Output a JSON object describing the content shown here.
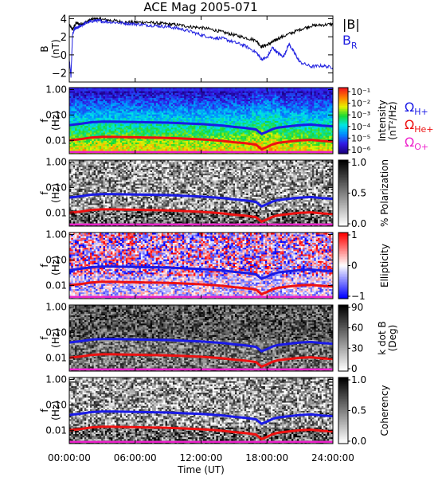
{
  "title": "ACE Mag 2005-071",
  "colors": {
    "b_total": "#000000",
    "b_r": "#2020e0",
    "h_plus": "#1a1ae6",
    "he_plus": "#ee1111",
    "o_plus": "#ee22cc"
  },
  "legend_top": {
    "b_total": "|B|",
    "b_r": "B",
    "b_r_sub": "R"
  },
  "legend_gyro": [
    {
      "sym": "Ω",
      "sub": "H+",
      "color": "#1a1ae6"
    },
    {
      "sym": "Ω",
      "sub": "He+",
      "color": "#ee1111"
    },
    {
      "sym": "Ω",
      "sub": "O+",
      "color": "#ee22cc"
    }
  ],
  "x_axis": {
    "label": "Time (UT)",
    "ticks": [
      "00:00:00",
      "06:00:00",
      "12:00:00",
      "18:00:00",
      "24:00:00"
    ],
    "range_hours": [
      0,
      24
    ]
  },
  "chart_data": [
    {
      "type": "line",
      "panel": "B",
      "ylabel": "B",
      "yunit": "(nT)",
      "ylim": [
        -3,
        4.3
      ],
      "yticks": [
        "4",
        "2",
        "0",
        "−2"
      ],
      "yticks_values": [
        4,
        2,
        0,
        -2
      ],
      "series": [
        {
          "name": "|B|",
          "x": [
            0,
            0.3,
            0.6,
            1,
            1.5,
            2,
            2.5,
            3,
            4,
            5,
            6,
            7,
            8,
            9,
            10,
            11,
            12,
            13,
            14,
            15,
            16,
            17,
            17.5,
            18,
            18.5,
            19,
            20,
            21,
            22,
            23,
            24
          ],
          "values": [
            3.3,
            2.8,
            3.5,
            3.4,
            3.6,
            3.9,
            4.0,
            3.9,
            3.8,
            3.6,
            3.6,
            3.6,
            3.5,
            3.4,
            3.3,
            3.1,
            3.0,
            2.8,
            2.5,
            2.2,
            1.9,
            1.6,
            0.9,
            1.1,
            1.4,
            1.8,
            2.3,
            2.8,
            3.2,
            3.3,
            3.4
          ]
        },
        {
          "name": "B_R",
          "x": [
            0,
            0.15,
            0.3,
            0.5,
            0.8,
            1,
            1.5,
            2,
            2.5,
            3,
            4,
            5,
            6,
            7,
            8,
            9,
            10,
            11,
            12,
            13,
            14,
            15,
            16,
            17,
            17.5,
            18,
            18.5,
            19,
            19.5,
            20,
            20.5,
            21,
            22,
            23,
            24
          ],
          "values": [
            -0.5,
            -2.4,
            2.3,
            2.9,
            3.0,
            3.2,
            3.5,
            3.7,
            3.8,
            3.7,
            3.6,
            3.5,
            3.4,
            3.3,
            3.2,
            3.1,
            2.9,
            2.6,
            2.2,
            1.9,
            1.8,
            1.4,
            1.0,
            0.3,
            -0.5,
            -0.3,
            0.8,
            0.2,
            -0.2,
            1.2,
            0.2,
            -0.8,
            -1.3,
            -1.2,
            -1.4
          ]
        }
      ]
    },
    {
      "type": "heatmap",
      "panel": "Intensity",
      "ylabel": "f",
      "yunit": "(Hz)",
      "yticks": [
        "1.00",
        "0.10",
        "0.01"
      ],
      "colorbar": {
        "label1": "Intensity",
        "label2": "(nT²/Hz)",
        "ticks": [
          "10⁻¹",
          "10⁻²",
          "10⁻³",
          "10⁻⁴",
          "10⁻⁵",
          "10⁻⁶"
        ],
        "scale": "rainbow"
      }
    },
    {
      "type": "heatmap",
      "panel": "Polarization",
      "ylabel": "f",
      "yunit": "(Hz)",
      "yticks": [
        "1.00",
        "0.10",
        "0.01"
      ],
      "colorbar": {
        "label1": "% Polarization",
        "ticks": [
          "1.0",
          "0.5",
          "0.0"
        ],
        "scale": "gray"
      }
    },
    {
      "type": "heatmap",
      "panel": "Ellipticity",
      "ylabel": "f",
      "yunit": "(Hz)",
      "yticks": [
        "1.00",
        "0.10",
        "0.01"
      ],
      "colorbar": {
        "label1": "Ellipticity",
        "ticks": [
          "1",
          "0",
          "−1"
        ],
        "scale": "bwr"
      }
    },
    {
      "type": "heatmap",
      "panel": "k dot B",
      "ylabel": "f",
      "yunit": "(Hz)",
      "yticks": [
        "1.00",
        "0.10",
        "0.01"
      ],
      "colorbar": {
        "label1": "k dot B",
        "label2": "(Deg)",
        "ticks": [
          "90",
          "60",
          "30",
          "0"
        ],
        "scale": "gray"
      }
    },
    {
      "type": "heatmap",
      "panel": "Coherency",
      "ylabel": "f",
      "yunit": "(Hz)",
      "yticks": [
        "1.00",
        "0.10",
        "0.01"
      ],
      "colorbar": {
        "label1": "Coherency",
        "ticks": [
          "1.0",
          "0.5",
          "0.0"
        ],
        "scale": "gray"
      }
    }
  ],
  "gyro_lines": {
    "x": [
      0,
      1,
      2,
      3,
      4,
      5,
      6,
      7,
      8,
      9,
      10,
      11,
      12,
      13,
      14,
      15,
      16,
      17,
      17.5,
      18,
      18.5,
      19,
      20,
      21,
      22,
      23,
      24
    ],
    "h_plus_hz": [
      0.04,
      0.045,
      0.052,
      0.055,
      0.055,
      0.054,
      0.053,
      0.052,
      0.051,
      0.05,
      0.048,
      0.046,
      0.044,
      0.041,
      0.038,
      0.034,
      0.031,
      0.027,
      0.018,
      0.022,
      0.028,
      0.032,
      0.036,
      0.04,
      0.042,
      0.038,
      0.036
    ],
    "he_plus_hz": [
      0.01,
      0.0112,
      0.013,
      0.0138,
      0.0138,
      0.0135,
      0.0133,
      0.013,
      0.0128,
      0.0125,
      0.012,
      0.0115,
      0.011,
      0.0103,
      0.0095,
      0.0085,
      0.0078,
      0.0068,
      0.0045,
      0.0055,
      0.007,
      0.008,
      0.009,
      0.01,
      0.0105,
      0.0095,
      0.009
    ],
    "o_plus_hz": [
      0.0035,
      0.0035,
      0.0035,
      0.0035,
      0.0035,
      0.0035,
      0.0035,
      0.0035,
      0.0035,
      0.0035,
      0.0035,
      0.0035,
      0.0035,
      0.0035,
      0.0035,
      0.0035,
      0.0035,
      0.0035,
      0.0035,
      0.0035,
      0.0035,
      0.0035,
      0.0035,
      0.0035,
      0.0035,
      0.0035,
      0.0035
    ]
  }
}
